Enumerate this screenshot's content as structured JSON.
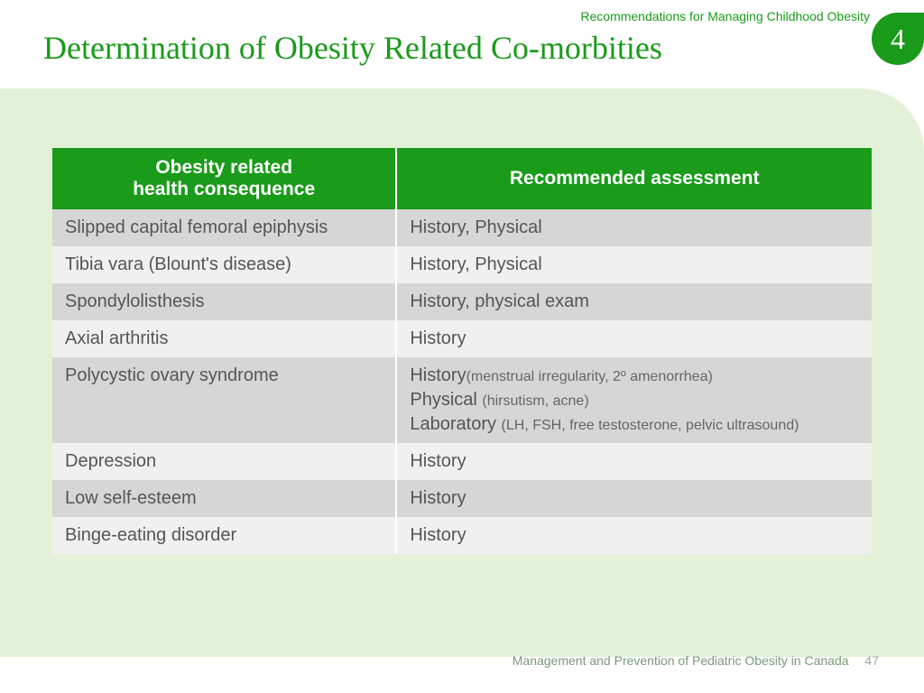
{
  "header": {
    "subtitle": "Recommendations for Managing Childhood Obesity",
    "title": "Determination of Obesity Related Co-morbities",
    "page_badge": "4"
  },
  "colors": {
    "accent": "#1a9b1a",
    "content_bg": "#e3f1d9",
    "row_dark": "#d6d6d6",
    "row_light": "#f0f0f0",
    "text": "#555555"
  },
  "table": {
    "type": "table",
    "header_line1_col1": "Obesity related",
    "header_line2_col1": "health consequence",
    "header_col2": "Recommended assessment",
    "rows": [
      {
        "c1": "Slipped capital femoral epiphysis",
        "c2": "History, Physical"
      },
      {
        "c1": "Tibia vara (Blount's disease)",
        "c2": "History, Physical"
      },
      {
        "c1": "Spondylolisthesis",
        "c2": "History, physical exam"
      },
      {
        "c1": "Axial arthritis",
        "c2": "History"
      },
      {
        "c1": "Polycystic ovary syndrome",
        "c2_l1a": "History",
        "c2_l1b": "(menstrual irregularity, 2º amenorrhea)",
        "c2_l2a": "Physical ",
        "c2_l2b": "(hirsutism, acne)",
        "c2_l3a": "Laboratory ",
        "c2_l3b": "(LH, FSH, free testosterone, pelvic ultrasound)"
      },
      {
        "c1": "Depression",
        "c2": "History"
      },
      {
        "c1": "Low self-esteem",
        "c2": "History"
      },
      {
        "c1": "Binge-eating disorder",
        "c2": "History"
      }
    ]
  },
  "footer": {
    "text": "Management and Prevention of Pediatric Obesity in Canada",
    "page": "47"
  }
}
